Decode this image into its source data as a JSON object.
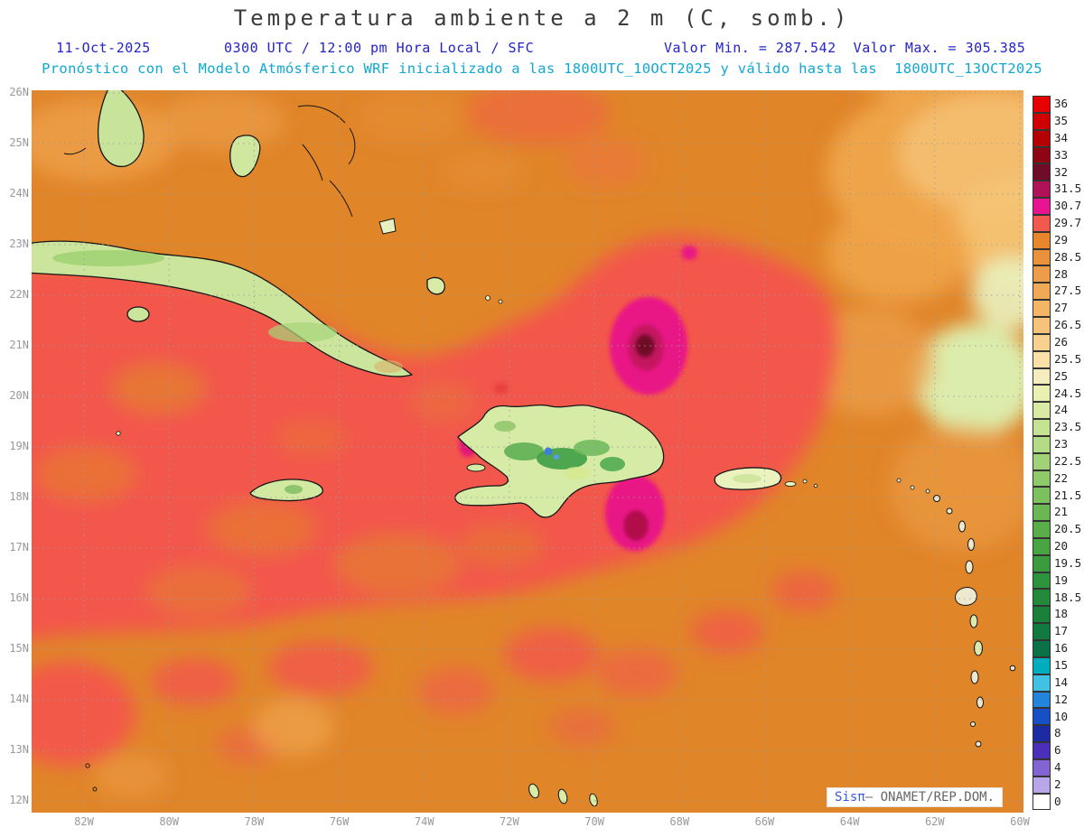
{
  "header": {
    "title": "Temperatura ambiente a 2 m (C, somb.)",
    "date": "11-Oct-2025",
    "time_info": "0300 UTC / 12:00 pm Hora Local / SFC",
    "min_max": "Valor Min. = 287.542  Valor Max. = 305.385",
    "forecast_line": "Pronóstico con el Modelo Atmósferico WRF inicializado a las 1800UTC_10OCT2025 y válido hasta las  1800UTC_13OCT2025"
  },
  "map": {
    "lat_ticks": [
      "26N",
      "25N",
      "24N",
      "23N",
      "22N",
      "21N",
      "20N",
      "19N",
      "18N",
      "17N",
      "16N",
      "15N",
      "14N",
      "13N",
      "12N"
    ],
    "lon_ticks": [
      "82W",
      "80W",
      "78W",
      "76W",
      "74W",
      "72W",
      "70W",
      "68W",
      "66W",
      "64W",
      "62W",
      "60W"
    ]
  },
  "colorbar": {
    "entries": [
      {
        "label": "36",
        "color": "#e60000"
      },
      {
        "label": "35",
        "color": "#d00000"
      },
      {
        "label": "34",
        "color": "#b20003"
      },
      {
        "label": "33",
        "color": "#8e0413"
      },
      {
        "label": "32",
        "color": "#6f0d28"
      },
      {
        "label": "31.5",
        "color": "#b01258"
      },
      {
        "label": "30.7",
        "color": "#e81592"
      },
      {
        "label": "29.7",
        "color": "#f25a50"
      },
      {
        "label": "29",
        "color": "#e8862c"
      },
      {
        "label": "28.5",
        "color": "#ea913c"
      },
      {
        "label": "28",
        "color": "#ed9d4a"
      },
      {
        "label": "27.5",
        "color": "#f0a957"
      },
      {
        "label": "27",
        "color": "#f3b566"
      },
      {
        "label": "26.5",
        "color": "#f6c37a"
      },
      {
        "label": "26",
        "color": "#f8d190"
      },
      {
        "label": "25.5",
        "color": "#fadfa8"
      },
      {
        "label": "25",
        "color": "#f5ecc0"
      },
      {
        "label": "24.5",
        "color": "#e9f0b2"
      },
      {
        "label": "24",
        "color": "#d8eaa3"
      },
      {
        "label": "23.5",
        "color": "#c6e394"
      },
      {
        "label": "23",
        "color": "#b4db86"
      },
      {
        "label": "22.5",
        "color": "#a1d278"
      },
      {
        "label": "22",
        "color": "#8fca6b"
      },
      {
        "label": "21.5",
        "color": "#7cc05f"
      },
      {
        "label": "21",
        "color": "#6ab754"
      },
      {
        "label": "20.5",
        "color": "#59ae4a"
      },
      {
        "label": "20",
        "color": "#49a543"
      },
      {
        "label": "19.5",
        "color": "#3b9c3f"
      },
      {
        "label": "19",
        "color": "#2e933d"
      },
      {
        "label": "18.5",
        "color": "#238a3c"
      },
      {
        "label": "18",
        "color": "#1a813b"
      },
      {
        "label": "17",
        "color": "#127a3e"
      },
      {
        "label": "16",
        "color": "#0b7248"
      },
      {
        "label": "15",
        "color": "#00adbe"
      },
      {
        "label": "14",
        "color": "#41c1e4"
      },
      {
        "label": "12",
        "color": "#2384dc"
      },
      {
        "label": "10",
        "color": "#1750c4"
      },
      {
        "label": "8",
        "color": "#1c2aa4"
      },
      {
        "label": "6",
        "color": "#4c2fb8"
      },
      {
        "label": "4",
        "color": "#8464d2"
      },
      {
        "label": "2",
        "color": "#b9a6e8"
      },
      {
        "label": "0",
        "color": "#ffffff"
      }
    ]
  },
  "watermark": {
    "brand": "Sisπ",
    "text": "– ONAMET/REP.DOM."
  },
  "palette": {
    "sea_warm_red": "#f3564c",
    "sea_orange": "#e18529",
    "hotspot_magenta": "#e91486",
    "hotspot_core": "#6f0d28",
    "island_green": "#d6eba6",
    "header_blue": "#2323c8",
    "header_cyan": "#0fa8d2",
    "tick_gray": "#999999"
  },
  "chart_data": {
    "type": "heatmap",
    "title": "Temperatura ambiente a 2 m (C, somb.)",
    "variable": "2 m ambient temperature (shaded)",
    "units": "C",
    "valor_min": 287.542,
    "valor_max": 305.385,
    "valid_date": "11-Oct-2025",
    "valid_time": "0300 UTC / 12:00 pm Hora Local / SFC",
    "level": "SFC",
    "model": "WRF",
    "init_time": "1800UTC_10OCT2025",
    "end_time": "1800UTC_13OCT2025",
    "lat_range": [
      "12N",
      "26N"
    ],
    "lon_range": [
      "83W",
      "60W"
    ],
    "grid": true,
    "legend_position": "right",
    "levels": [
      0,
      2,
      4,
      6,
      8,
      10,
      12,
      14,
      15,
      16,
      17,
      18,
      18.5,
      19,
      19.5,
      20,
      20.5,
      21,
      21.5,
      22,
      22.5,
      23,
      23.5,
      24,
      24.5,
      25,
      25.5,
      26,
      26.5,
      27,
      27.5,
      28,
      28.5,
      29,
      29.7,
      30.7,
      31.5,
      32,
      33,
      34,
      35,
      36
    ]
  }
}
